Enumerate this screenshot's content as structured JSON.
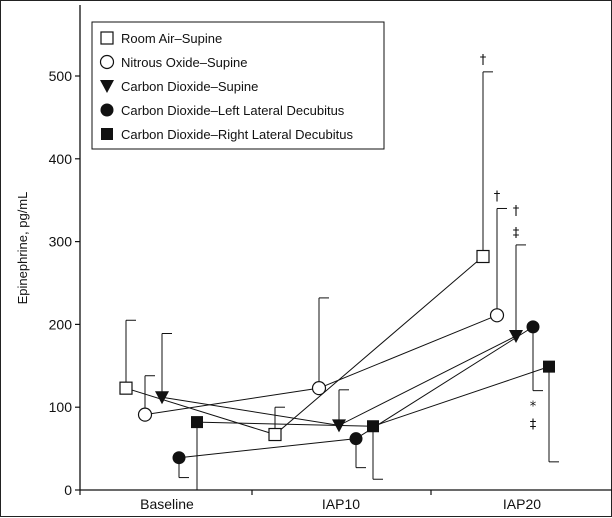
{
  "chart_data": {
    "type": "line",
    "title": "",
    "xlabel": "",
    "ylabel": "Epinephrine, pg/mL",
    "categories": [
      "Baseline",
      "IAP10",
      "IAP20"
    ],
    "ylim": [
      0,
      550
    ],
    "yticks": [
      0,
      100,
      200,
      300,
      400,
      500
    ],
    "grid": false,
    "legend_position": "top-left",
    "series": [
      {
        "name": "Room Air–Supine",
        "marker": "open-square",
        "values": [
          123,
          67,
          282
        ],
        "error_upper": [
          205,
          100,
          505
        ],
        "error_lower": [
          null,
          null,
          null
        ]
      },
      {
        "name": "Nitrous Oxide–Supine",
        "marker": "open-circle",
        "values": [
          91,
          123,
          211
        ],
        "error_upper": [
          138,
          232,
          340
        ],
        "error_lower": [
          null,
          null,
          null
        ]
      },
      {
        "name": "Carbon Dioxide–Supine",
        "marker": "filled-triangle-down",
        "values": [
          112,
          78,
          186
        ],
        "error_upper": [
          189,
          121,
          296
        ],
        "error_lower": [
          null,
          null,
          null
        ]
      },
      {
        "name": "Carbon Dioxide–Left Lateral Decubitus",
        "marker": "filled-circle",
        "values": [
          39,
          62,
          197
        ],
        "error_upper": [
          null,
          null,
          null
        ],
        "error_lower": [
          15,
          27,
          120
        ]
      },
      {
        "name": "Carbon Dioxide–Right Lateral Decubitus",
        "marker": "filled-square",
        "values": [
          82,
          77,
          149
        ],
        "error_upper": [
          null,
          null,
          null
        ],
        "error_lower": [
          0,
          13,
          34
        ]
      }
    ],
    "annotations": [
      {
        "text": "†",
        "series": 0,
        "category": 2,
        "where": "above"
      },
      {
        "text": "†",
        "series": 1,
        "category": 2,
        "where": "above"
      },
      {
        "text": "‡",
        "series": 2,
        "category": 2,
        "where": "above"
      },
      {
        "text": "†",
        "series": 2,
        "category": 2,
        "where": "above"
      },
      {
        "text": "*",
        "series": 3,
        "category": 2,
        "where": "below"
      },
      {
        "text": "‡",
        "series": 3,
        "category": 2,
        "where": "below"
      }
    ]
  }
}
